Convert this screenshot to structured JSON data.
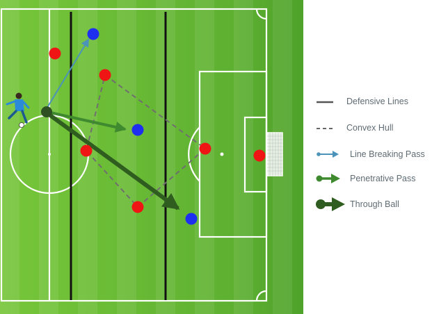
{
  "colors": {
    "grass_light": "#77c63a",
    "grass_dark": "#4fa22a",
    "line": "#ffffff",
    "defensive_line": "#111111",
    "convex_hull": "#6f6f6f",
    "line_breaking_pass": "#4b93b8",
    "penetrative_pass": "#3f8a2e",
    "through_ball": "#2f5d1f",
    "attacker": "#1f2ff0",
    "defender": "#f01515",
    "ball_carrier": "#2e4f22",
    "legend_text": "#5f6b73"
  },
  "legend": {
    "items": [
      {
        "label": "Defensive Lines",
        "icon": "solid-line-icon"
      },
      {
        "label": "Convex Hull",
        "icon": "dashed-line-icon"
      },
      {
        "label": "Line Breaking Pass",
        "icon": "small-arrow-icon"
      },
      {
        "label": "Penetrative Pass",
        "icon": "medium-arrow-icon"
      },
      {
        "label": "Through Ball",
        "icon": "large-arrow-icon"
      }
    ]
  },
  "players": {
    "ball_carrier_icon": "footballer-icon",
    "attackers": 3,
    "defenders": 6
  }
}
